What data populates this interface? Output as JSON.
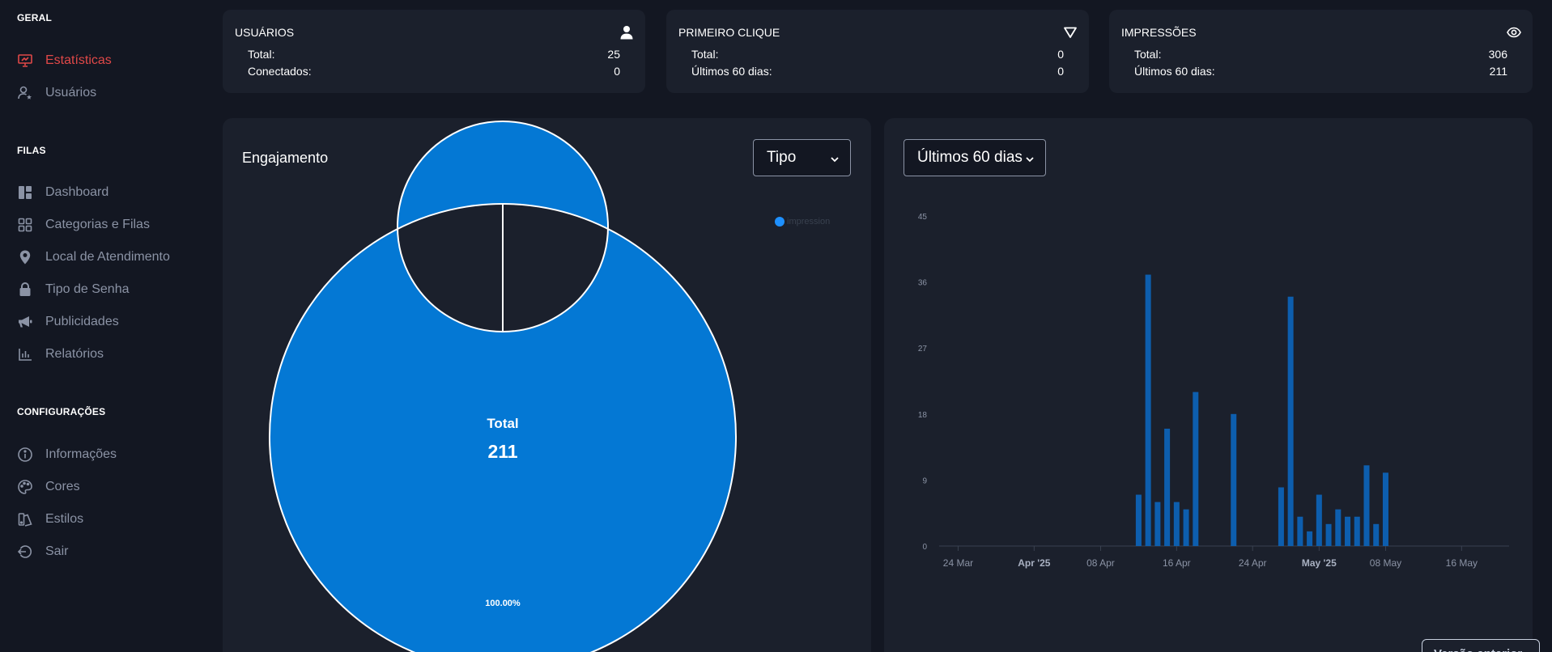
{
  "sidebar": {
    "sections": [
      {
        "title": "GERAL",
        "items": [
          {
            "label": "Estatísticas",
            "icon": "presentation-icon",
            "active": true
          },
          {
            "label": "Usuários",
            "icon": "user-star-icon"
          }
        ]
      },
      {
        "title": "FILAS",
        "items": [
          {
            "label": "Dashboard",
            "icon": "dashboard-icon"
          },
          {
            "label": "Categorias e Filas",
            "icon": "grid-icon"
          },
          {
            "label": "Local de Atendimento",
            "icon": "map-pin-icon"
          },
          {
            "label": "Tipo de Senha",
            "icon": "lock-icon"
          },
          {
            "label": "Publicidades",
            "icon": "megaphone-icon"
          },
          {
            "label": "Relatórios",
            "icon": "bar-chart-icon"
          }
        ]
      },
      {
        "title": "CONFIGURAÇÕES",
        "items": [
          {
            "label": "Informações",
            "icon": "info-icon"
          },
          {
            "label": "Cores",
            "icon": "palette-icon"
          },
          {
            "label": "Estilos",
            "icon": "styles-icon"
          },
          {
            "label": "Sair",
            "icon": "logout-icon"
          }
        ]
      }
    ]
  },
  "stats": [
    {
      "title": "USUÁRIOS",
      "icon": "user-icon",
      "rows": [
        {
          "label": "Total:",
          "value": "25"
        },
        {
          "label": "Conectados:",
          "value": "0"
        }
      ]
    },
    {
      "title": "PRIMEIRO CLIQUE",
      "icon": "filter-icon",
      "rows": [
        {
          "label": "Total:",
          "value": "0"
        },
        {
          "label": "Últimos 60 dias:",
          "value": "0"
        }
      ]
    },
    {
      "title": "IMPRESSÕES",
      "icon": "eye-icon",
      "rows": [
        {
          "label": "Total:",
          "value": "306"
        },
        {
          "label": "Últimos 60 dias:",
          "value": "211"
        }
      ]
    }
  ],
  "engagement": {
    "title": "Engajamento",
    "select_label": "Tipo",
    "center_label": "Total",
    "center_value": "211"
  },
  "timeline": {
    "select_label": "Últimos 60 dias",
    "prev_button": "Versão anterior"
  },
  "colors": {
    "accent": "#e04848",
    "donut": "#0478d4",
    "bars": "#0d5eae",
    "legend_dot": "#1e90ff"
  },
  "chart_data": [
    {
      "type": "pie",
      "categories": [
        "impression"
      ],
      "values": [
        211
      ],
      "data_labels": [
        "100.00%"
      ],
      "legend": "top-right"
    },
    {
      "type": "bar",
      "x_tick_labels": [
        "24 Mar",
        "Apr '25",
        "08 Apr",
        "16 Apr",
        "24 Apr",
        "May '25",
        "08 May",
        "16 May"
      ],
      "x_tick_dates": [
        "2025-03-24",
        "2025-04-01",
        "2025-04-08",
        "2025-04-16",
        "2025-04-24",
        "2025-05-01",
        "2025-05-08",
        "2025-05-16"
      ],
      "y_ticks": [
        0,
        9,
        18,
        27,
        36,
        45
      ],
      "ylim": [
        0,
        45
      ],
      "xlim": [
        "2025-03-22",
        "2025-05-21"
      ],
      "x": [
        "2025-04-12",
        "2025-04-13",
        "2025-04-14",
        "2025-04-15",
        "2025-04-16",
        "2025-04-17",
        "2025-04-18",
        "2025-04-22",
        "2025-04-27",
        "2025-04-28",
        "2025-04-29",
        "2025-04-30",
        "2025-05-01",
        "2025-05-02",
        "2025-05-03",
        "2025-05-04",
        "2025-05-05",
        "2025-05-06",
        "2025-05-07",
        "2025-05-08",
        "2025-05-09",
        "2025-05-13"
      ],
      "values": [
        7,
        37,
        6,
        16,
        6,
        5,
        21,
        18,
        8,
        34,
        4,
        2,
        7,
        3,
        5,
        4,
        4,
        11,
        3,
        10,
        0,
        0
      ],
      "grid": false
    }
  ]
}
